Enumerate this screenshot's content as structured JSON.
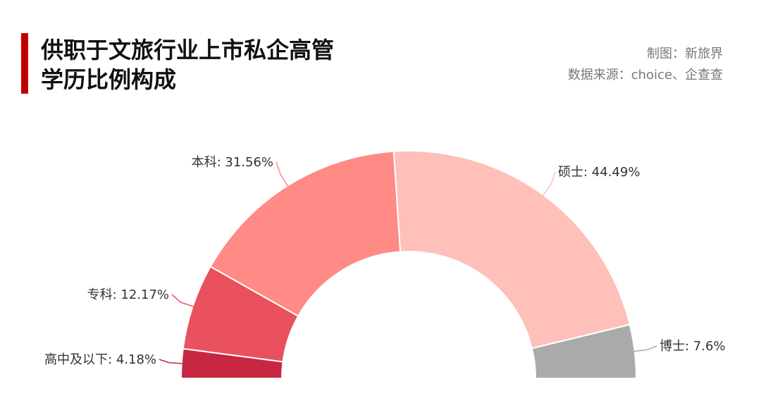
{
  "header": {
    "title_line1": "供职于文旅行业上市私企高管",
    "title_line2": "学历比例构成",
    "credit": "制图：新旅界",
    "source": "数据来源：choice、企查查",
    "accent_color": "#c00000"
  },
  "chart_data": {
    "type": "pie",
    "variant": "semicircle-donut",
    "title": "供职于文旅行业上市私企高管学历比例构成",
    "unit": "%",
    "slices": [
      {
        "name": "高中及以下",
        "value": 4.18,
        "label": "高中及以下: 4.18%",
        "color": "#c72741"
      },
      {
        "name": "专科",
        "value": 12.17,
        "label": "专科: 12.17%",
        "color": "#e9515e"
      },
      {
        "name": "本科",
        "value": 31.56,
        "label": "本科: 31.56%",
        "color": "#ff8a86"
      },
      {
        "name": "硕士",
        "value": 44.49,
        "label": "硕士: 44.49%",
        "color": "#ffc0ba"
      },
      {
        "name": "博士",
        "value": 7.6,
        "label": "博士: 7.6%",
        "color": "#aaaaaa"
      }
    ]
  }
}
